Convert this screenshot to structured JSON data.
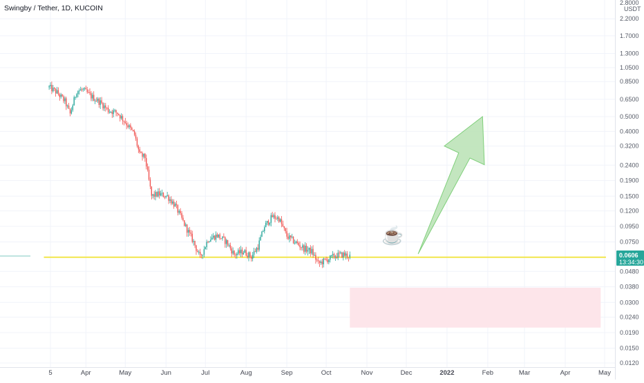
{
  "header": {
    "title": "Swingby / Tether, 1D, KUCOIN"
  },
  "axis": {
    "unit_top": "2.8000",
    "unit_label": "USDT"
  },
  "price_tag": {
    "value": "0.0606",
    "countdown": "13:34:30"
  },
  "colors": {
    "up": "#26a69a",
    "down": "#ef5350",
    "support_line": "#f2e64b",
    "arrow_fill": "#b9e2b4",
    "arrow_stroke": "#7fcf7a",
    "zone": "#fde5ea",
    "price_tag_bg": "#26a69a",
    "grid": "#f0f3fa"
  },
  "icon": "coffee-cup-icon",
  "chart_data": {
    "type": "candlestick",
    "title": "Swingby / Tether, 1D, KUCOIN",
    "scale": "log",
    "ylim": [
      0.012,
      2.9
    ],
    "y_ticks": [
      2.2,
      1.7,
      1.3,
      1.05,
      0.85,
      0.65,
      0.5,
      0.4,
      0.32,
      0.24,
      0.19,
      0.15,
      0.12,
      0.095,
      0.075,
      0.048,
      0.038,
      0.03,
      0.024,
      0.019,
      0.015,
      0.012
    ],
    "y_tick_labels": [
      "2.2000",
      "1.7000",
      "1.3000",
      "1.0500",
      "0.8500",
      "0.6500",
      "0.5000",
      "0.4000",
      "0.3200",
      "0.2400",
      "0.1900",
      "0.1500",
      "0.1200",
      "0.0950",
      "0.0750",
      "0.0480",
      "0.0380",
      "0.0300",
      "0.0240",
      "0.0190",
      "0.0150",
      "0.0120"
    ],
    "x_ticks": [
      {
        "date": "2021-03-05",
        "label": "5"
      },
      {
        "date": "2021-04-01",
        "label": "Apr"
      },
      {
        "date": "2021-05-01",
        "label": "May"
      },
      {
        "date": "2021-06-01",
        "label": "Jun"
      },
      {
        "date": "2021-07-01",
        "label": "Jul"
      },
      {
        "date": "2021-08-01",
        "label": "Aug"
      },
      {
        "date": "2021-09-01",
        "label": "Sep"
      },
      {
        "date": "2021-10-01",
        "label": "Oct"
      },
      {
        "date": "2021-11-01",
        "label": "Nov"
      },
      {
        "date": "2021-12-01",
        "label": "Dec"
      },
      {
        "date": "2022-01-01",
        "label": "2022",
        "bold": true
      },
      {
        "date": "2022-02-01",
        "label": "Feb"
      },
      {
        "date": "2022-03-01",
        "label": "Mar"
      },
      {
        "date": "2022-04-01",
        "label": "Apr"
      },
      {
        "date": "2022-05-01",
        "label": "May"
      }
    ],
    "price_path": [
      [
        "2021-03-04",
        0.78
      ],
      [
        "2021-03-10",
        0.72
      ],
      [
        "2021-03-16",
        0.63
      ],
      [
        "2021-03-20",
        0.52
      ],
      [
        "2021-03-25",
        0.74
      ],
      [
        "2021-03-30",
        0.75
      ],
      [
        "2021-04-05",
        0.68
      ],
      [
        "2021-04-12",
        0.62
      ],
      [
        "2021-04-18",
        0.55
      ],
      [
        "2021-04-25",
        0.53
      ],
      [
        "2021-05-02",
        0.45
      ],
      [
        "2021-05-08",
        0.38
      ],
      [
        "2021-05-12",
        0.28
      ],
      [
        "2021-05-16",
        0.27
      ],
      [
        "2021-05-21",
        0.15
      ],
      [
        "2021-05-26",
        0.155
      ],
      [
        "2021-06-02",
        0.15
      ],
      [
        "2021-06-08",
        0.13
      ],
      [
        "2021-06-15",
        0.098
      ],
      [
        "2021-06-22",
        0.075
      ],
      [
        "2021-06-27",
        0.059
      ],
      [
        "2021-07-03",
        0.078
      ],
      [
        "2021-07-10",
        0.083
      ],
      [
        "2021-07-17",
        0.075
      ],
      [
        "2021-07-23",
        0.062
      ],
      [
        "2021-07-30",
        0.065
      ],
      [
        "2021-08-05",
        0.06
      ],
      [
        "2021-08-10",
        0.07
      ],
      [
        "2021-08-15",
        0.095
      ],
      [
        "2021-08-21",
        0.11
      ],
      [
        "2021-08-26",
        0.107
      ],
      [
        "2021-09-01",
        0.082
      ],
      [
        "2021-09-07",
        0.075
      ],
      [
        "2021-09-14",
        0.068
      ],
      [
        "2021-09-20",
        0.065
      ],
      [
        "2021-09-25",
        0.054
      ],
      [
        "2021-10-01",
        0.057
      ],
      [
        "2021-10-08",
        0.061
      ],
      [
        "2021-10-14",
        0.062
      ],
      [
        "2021-10-19",
        0.0606
      ]
    ],
    "last_price": 0.0606,
    "annotations": [
      {
        "type": "horizontal_line",
        "price": 0.0595,
        "from": "2021-02-28",
        "to": "2022-05-02",
        "label": ""
      },
      {
        "type": "rectangle",
        "price_top": 0.0375,
        "price_bottom": 0.0205,
        "from": "2021-10-19",
        "to": "2022-04-28"
      },
      {
        "type": "arrow",
        "from": {
          "date": "2021-12-10",
          "price": 0.0625
        },
        "to": {
          "date": "2022-01-28",
          "price": 0.5
        }
      },
      {
        "type": "icon",
        "name": "coffee-cup-icon",
        "date": "2021-11-25",
        "price": 0.082
      }
    ]
  }
}
